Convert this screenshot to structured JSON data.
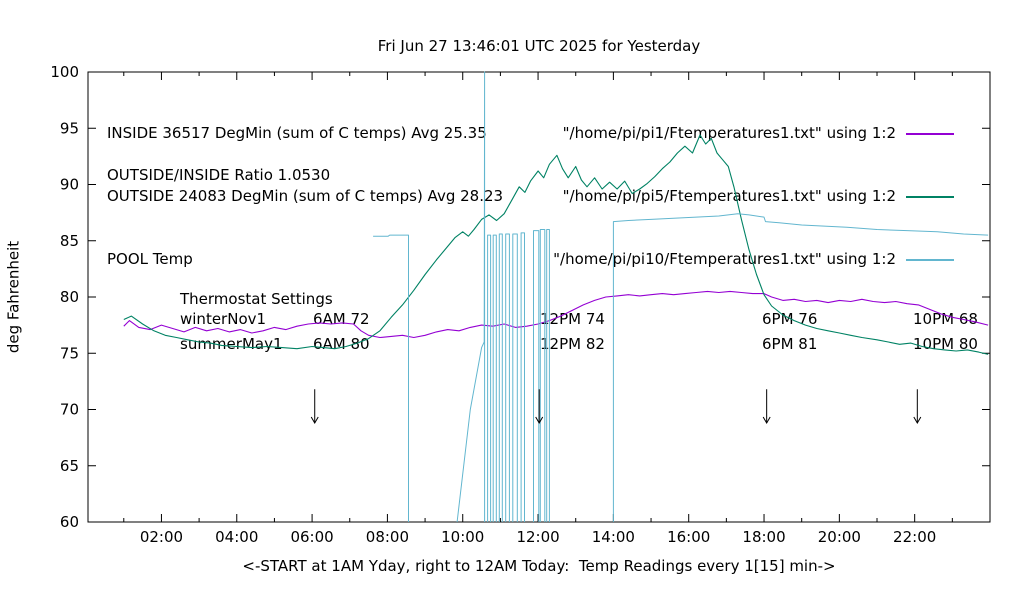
{
  "chart_data": {
    "type": "line",
    "title": "Fri Jun 27 13:46:01 UTC 2025 for Yesterday",
    "xlabel": "<-START at 1AM Yday, right to 12AM Today:  Temp Readings every 1[15] min->",
    "ylabel": "deg Fahrenheit",
    "xlim": [
      0.05,
      24
    ],
    "ylim": [
      60,
      100
    ],
    "grid": false,
    "legend_position": "top",
    "xticks": [
      {
        "v": 2,
        "label": "02:00"
      },
      {
        "v": 4,
        "label": "04:00"
      },
      {
        "v": 6,
        "label": "06:00"
      },
      {
        "v": 8,
        "label": "08:00"
      },
      {
        "v": 10,
        "label": "10:00"
      },
      {
        "v": 12,
        "label": "12:00"
      },
      {
        "v": 14,
        "label": "14:00"
      },
      {
        "v": 16,
        "label": "16:00"
      },
      {
        "v": 18,
        "label": "18:00"
      },
      {
        "v": 20,
        "label": "20:00"
      },
      {
        "v": 22,
        "label": "22:00"
      }
    ],
    "xminor": [
      1,
      3,
      5,
      7,
      9,
      11,
      13,
      15,
      17,
      19,
      21,
      23
    ],
    "yticks": [
      {
        "v": 60,
        "label": "60"
      },
      {
        "v": 65,
        "label": "65"
      },
      {
        "v": 70,
        "label": "70"
      },
      {
        "v": 75,
        "label": "75"
      },
      {
        "v": 80,
        "label": "80"
      },
      {
        "v": 85,
        "label": "85"
      },
      {
        "v": 90,
        "label": "90"
      },
      {
        "v": 95,
        "label": "95"
      },
      {
        "v": 100,
        "label": "100"
      }
    ],
    "legend_left": [
      "INSIDE 36517 DegMin (sum of C temps) Avg 25.35",
      "OUTSIDE 24083 DegMin (sum of C temps) Avg 28.23",
      "POOL Temp"
    ],
    "ratio_label": "OUTSIDE/INSIDE Ratio 1.0530",
    "legend_right": [
      {
        "label": "\"/home/pi/pi1/Ftemperatures1.txt\" using 1:2",
        "color": "#9400d3"
      },
      {
        "label": "\"/home/pi/pi5/Ftemperatures1.txt\" using 1:2",
        "color": "#008264"
      },
      {
        "label": "\"/home/pi/pi10/Ftemperatures1.txt\" using 1:2",
        "color": "#62b6cf"
      }
    ],
    "annotations": {
      "thermostat_title": "Thermostat Settings",
      "rows": [
        {
          "name": "winterNov1",
          "c1": "6AM 72",
          "c2": "12PM 74",
          "c3": "6PM 76",
          "c4": "10PM 68"
        },
        {
          "name": "summerMay1",
          "c1": "6AM 80",
          "c2": "12PM 82",
          "c3": "6PM 81",
          "c4": "10PM 80"
        }
      ]
    },
    "arrow_span": [
      71.8,
      68.8
    ],
    "arrows": [
      {
        "x": 6.07
      },
      {
        "x": 12.03
      },
      {
        "x": 18.07
      },
      {
        "x": 22.07
      }
    ],
    "series": [
      {
        "name": "INSIDE",
        "color": "#9400d3",
        "width": 1.1,
        "segments": [
          [
            [
              1.0,
              77.4
            ],
            [
              1.15,
              77.9
            ],
            [
              1.4,
              77.3
            ],
            [
              1.7,
              77.1
            ],
            [
              2.0,
              77.5
            ],
            [
              2.3,
              77.2
            ],
            [
              2.6,
              76.9
            ],
            [
              2.9,
              77.3
            ],
            [
              3.2,
              77.0
            ],
            [
              3.5,
              77.2
            ],
            [
              3.8,
              76.9
            ],
            [
              4.1,
              77.1
            ],
            [
              4.4,
              76.8
            ],
            [
              4.7,
              77.0
            ],
            [
              5.0,
              77.3
            ],
            [
              5.3,
              77.1
            ],
            [
              5.6,
              77.4
            ],
            [
              5.9,
              77.6
            ],
            [
              6.2,
              77.7
            ],
            [
              6.5,
              77.6
            ],
            [
              6.8,
              77.7
            ],
            [
              7.1,
              77.6
            ],
            [
              7.3,
              77.0
            ],
            [
              7.5,
              76.6
            ],
            [
              7.8,
              76.4
            ],
            [
              8.1,
              76.5
            ],
            [
              8.4,
              76.6
            ],
            [
              8.7,
              76.4
            ],
            [
              9.0,
              76.6
            ],
            [
              9.3,
              76.9
            ],
            [
              9.6,
              77.1
            ],
            [
              9.9,
              77.0
            ],
            [
              10.2,
              77.3
            ],
            [
              10.5,
              77.5
            ],
            [
              10.8,
              77.4
            ],
            [
              11.1,
              77.6
            ],
            [
              11.4,
              77.3
            ],
            [
              11.7,
              77.4
            ],
            [
              12.0,
              77.6
            ],
            [
              12.3,
              77.9
            ],
            [
              12.6,
              78.3
            ],
            [
              12.9,
              78.8
            ],
            [
              13.2,
              79.3
            ],
            [
              13.5,
              79.7
            ],
            [
              13.8,
              80.0
            ],
            [
              14.1,
              80.1
            ],
            [
              14.4,
              80.2
            ],
            [
              14.7,
              80.1
            ],
            [
              15.0,
              80.2
            ],
            [
              15.3,
              80.3
            ],
            [
              15.6,
              80.2
            ],
            [
              15.9,
              80.3
            ],
            [
              16.2,
              80.4
            ],
            [
              16.5,
              80.5
            ],
            [
              16.8,
              80.4
            ],
            [
              17.1,
              80.5
            ],
            [
              17.4,
              80.4
            ],
            [
              17.7,
              80.3
            ],
            [
              18.0,
              80.3
            ],
            [
              18.2,
              80.0
            ],
            [
              18.5,
              79.7
            ],
            [
              18.8,
              79.8
            ],
            [
              19.1,
              79.6
            ],
            [
              19.4,
              79.7
            ],
            [
              19.7,
              79.5
            ],
            [
              20.0,
              79.7
            ],
            [
              20.3,
              79.6
            ],
            [
              20.6,
              79.8
            ],
            [
              20.9,
              79.6
            ],
            [
              21.2,
              79.5
            ],
            [
              21.5,
              79.6
            ],
            [
              21.8,
              79.4
            ],
            [
              22.1,
              79.3
            ],
            [
              22.4,
              78.9
            ],
            [
              22.7,
              78.5
            ],
            [
              23.0,
              78.2
            ],
            [
              23.3,
              78.0
            ],
            [
              23.6,
              77.8
            ],
            [
              23.95,
              77.5
            ]
          ]
        ]
      },
      {
        "name": "OUTSIDE",
        "color": "#008264",
        "width": 1.1,
        "segments": [
          [
            [
              1.0,
              78.0
            ],
            [
              1.2,
              78.3
            ],
            [
              1.5,
              77.6
            ],
            [
              1.8,
              77.0
            ],
            [
              2.1,
              76.6
            ],
            [
              2.4,
              76.4
            ],
            [
              2.7,
              76.2
            ],
            [
              3.0,
              76.0
            ],
            [
              3.3,
              75.9
            ],
            [
              3.6,
              75.7
            ],
            [
              4.0,
              75.6
            ],
            [
              4.4,
              75.5
            ],
            [
              4.8,
              75.6
            ],
            [
              5.2,
              75.5
            ],
            [
              5.6,
              75.4
            ],
            [
              6.0,
              75.6
            ],
            [
              6.3,
              75.5
            ],
            [
              6.6,
              75.4
            ],
            [
              6.9,
              75.6
            ],
            [
              7.2,
              75.9
            ],
            [
              7.5,
              76.3
            ],
            [
              7.8,
              77.0
            ],
            [
              8.1,
              78.2
            ],
            [
              8.4,
              79.3
            ],
            [
              8.7,
              80.6
            ],
            [
              9.0,
              82.0
            ],
            [
              9.3,
              83.3
            ],
            [
              9.6,
              84.5
            ],
            [
              9.8,
              85.3
            ],
            [
              10.0,
              85.8
            ],
            [
              10.15,
              85.4
            ],
            [
              10.3,
              86.0
            ],
            [
              10.5,
              86.9
            ],
            [
              10.7,
              87.3
            ],
            [
              10.9,
              86.8
            ],
            [
              11.1,
              87.4
            ],
            [
              11.3,
              88.6
            ],
            [
              11.5,
              89.8
            ],
            [
              11.65,
              89.3
            ],
            [
              11.8,
              90.3
            ],
            [
              12.0,
              91.2
            ],
            [
              12.15,
              90.6
            ],
            [
              12.3,
              91.8
            ],
            [
              12.5,
              92.6
            ],
            [
              12.65,
              91.4
            ],
            [
              12.8,
              90.6
            ],
            [
              13.0,
              91.6
            ],
            [
              13.15,
              90.4
            ],
            [
              13.3,
              89.8
            ],
            [
              13.5,
              90.6
            ],
            [
              13.7,
              89.6
            ],
            [
              13.9,
              90.2
            ],
            [
              14.1,
              89.6
            ],
            [
              14.3,
              90.3
            ],
            [
              14.5,
              89.2
            ],
            [
              14.7,
              89.6
            ],
            [
              14.9,
              90.1
            ],
            [
              15.1,
              90.7
            ],
            [
              15.3,
              91.4
            ],
            [
              15.5,
              92.0
            ],
            [
              15.7,
              92.8
            ],
            [
              15.9,
              93.4
            ],
            [
              16.1,
              92.8
            ],
            [
              16.3,
              94.4
            ],
            [
              16.45,
              93.6
            ],
            [
              16.6,
              94.1
            ],
            [
              16.75,
              92.8
            ],
            [
              16.9,
              92.2
            ],
            [
              17.05,
              91.6
            ],
            [
              17.2,
              89.8
            ],
            [
              17.4,
              86.9
            ],
            [
              17.6,
              84.2
            ],
            [
              17.8,
              82.0
            ],
            [
              18.0,
              80.2
            ],
            [
              18.2,
              79.2
            ],
            [
              18.5,
              78.4
            ],
            [
              18.8,
              77.9
            ],
            [
              19.1,
              77.5
            ],
            [
              19.4,
              77.2
            ],
            [
              19.7,
              77.0
            ],
            [
              20.0,
              76.8
            ],
            [
              20.3,
              76.6
            ],
            [
              20.6,
              76.4
            ],
            [
              21.0,
              76.2
            ],
            [
              21.3,
              76.0
            ],
            [
              21.6,
              75.8
            ],
            [
              21.9,
              75.9
            ],
            [
              22.2,
              75.6
            ],
            [
              22.5,
              75.4
            ],
            [
              22.8,
              75.3
            ],
            [
              23.1,
              75.2
            ],
            [
              23.4,
              75.3
            ],
            [
              23.7,
              75.1
            ],
            [
              23.95,
              74.9
            ]
          ]
        ]
      },
      {
        "name": "POOL",
        "color": "#62b6cf",
        "width": 1.0,
        "segments": [
          [
            [
              7.62,
              85.4
            ],
            [
              8.02,
              85.4
            ],
            [
              8.06,
              85.5
            ],
            [
              8.56,
              85.5
            ],
            [
              8.56,
              60
            ]
          ],
          [
            [
              9.85,
              60
            ],
            [
              10.2,
              70
            ],
            [
              10.5,
              75.5
            ],
            [
              10.57,
              76
            ],
            [
              10.58,
              100
            ],
            [
              10.58,
              60
            ]
          ],
          [
            [
              10.66,
              60
            ],
            [
              10.66,
              85.5
            ],
            [
              10.74,
              85.5
            ],
            [
              10.74,
              60
            ]
          ],
          [
            [
              10.81,
              60
            ],
            [
              10.81,
              85.5
            ],
            [
              10.89,
              85.5
            ],
            [
              10.89,
              60
            ]
          ],
          [
            [
              10.97,
              60
            ],
            [
              10.97,
              85.6
            ],
            [
              11.05,
              85.6
            ],
            [
              11.05,
              60
            ]
          ],
          [
            [
              11.14,
              60
            ],
            [
              11.14,
              85.6
            ],
            [
              11.24,
              85.6
            ],
            [
              11.24,
              60
            ]
          ],
          [
            [
              11.33,
              60
            ],
            [
              11.33,
              85.6
            ],
            [
              11.45,
              85.6
            ],
            [
              11.45,
              60
            ]
          ],
          [
            [
              11.55,
              60
            ],
            [
              11.55,
              85.7
            ],
            [
              11.64,
              85.7
            ],
            [
              11.64,
              60
            ]
          ],
          [
            [
              11.88,
              60
            ],
            [
              11.88,
              85.9
            ],
            [
              12.02,
              85.9
            ],
            [
              12.02,
              60
            ]
          ],
          [
            [
              12.06,
              60
            ],
            [
              12.06,
              86.0
            ],
            [
              12.18,
              86.0
            ],
            [
              12.18,
              60
            ]
          ],
          [
            [
              12.23,
              60
            ],
            [
              12.23,
              86.0
            ],
            [
              12.3,
              86.0
            ],
            [
              12.3,
              60
            ]
          ],
          [
            [
              14.0,
              60
            ],
            [
              14.0,
              86.7
            ],
            [
              14.4,
              86.8
            ],
            [
              15.0,
              86.9
            ],
            [
              15.6,
              87.0
            ],
            [
              16.2,
              87.1
            ],
            [
              16.8,
              87.2
            ],
            [
              17.3,
              87.4
            ],
            [
              17.6,
              87.3
            ],
            [
              18.0,
              87.1
            ],
            [
              18.04,
              86.7
            ],
            [
              18.4,
              86.6
            ],
            [
              19.0,
              86.4
            ],
            [
              19.6,
              86.3
            ],
            [
              20.2,
              86.2
            ],
            [
              21.0,
              86.0
            ],
            [
              21.8,
              85.9
            ],
            [
              22.6,
              85.8
            ],
            [
              23.3,
              85.6
            ],
            [
              23.95,
              85.5
            ]
          ]
        ]
      }
    ]
  }
}
